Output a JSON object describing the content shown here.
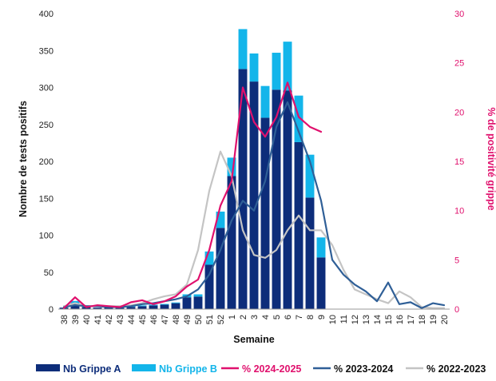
{
  "chart_data": {
    "type": "bar",
    "categories": [
      "38",
      "39",
      "40",
      "41",
      "42",
      "43",
      "44",
      "45",
      "46",
      "47",
      "48",
      "49",
      "50",
      "51",
      "52",
      "1",
      "2",
      "3",
      "4",
      "5",
      "6",
      "7",
      "8",
      "9",
      "10",
      "11",
      "12",
      "13",
      "14",
      "15",
      "16",
      "17",
      "18",
      "19",
      "20"
    ],
    "xlabel": "Semaine",
    "ylabel": "Nombre de tests positifs",
    "y2label": "% de positivité grippe",
    "ylim": [
      0,
      400
    ],
    "y2lim": [
      0,
      30
    ],
    "yticks": [
      0,
      50,
      100,
      150,
      200,
      250,
      300,
      350,
      400
    ],
    "y2ticks": [
      0,
      5,
      10,
      15,
      20,
      25,
      30
    ],
    "stacked": true,
    "legend_position": "bottom",
    "bar_series": [
      {
        "name": "Nb Grippe A",
        "color": "#0d2d7a",
        "values": [
          2,
          8,
          3,
          2,
          3,
          2,
          3,
          4,
          5,
          6,
          8,
          16,
          17,
          60,
          110,
          180,
          325,
          308,
          259,
          297,
          296,
          226,
          151,
          70,
          null,
          null,
          null,
          null,
          null,
          null,
          null,
          null,
          null,
          null,
          null
        ]
      },
      {
        "name": "Nb Grippe B",
        "color": "#13b5ea",
        "values": [
          0,
          3,
          0,
          0,
          0,
          0,
          1,
          1,
          1,
          1,
          1,
          4,
          3,
          18,
          22,
          25,
          54,
          38,
          43,
          50,
          66,
          63,
          58,
          27,
          null,
          null,
          null,
          null,
          null,
          null,
          null,
          null,
          null,
          null,
          null
        ]
      }
    ],
    "line_series": [
      {
        "name": "% 2024-2025",
        "color": "#e0106d",
        "axis": "right",
        "values": [
          0.1,
          1.2,
          0.2,
          0.4,
          0.3,
          0.2,
          0.7,
          0.9,
          0.5,
          0.8,
          1.3,
          2.3,
          3.0,
          6.0,
          10.5,
          13.0,
          22.5,
          19.0,
          17.5,
          19.5,
          23.0,
          19.5,
          18.5,
          18.0,
          null,
          null,
          null,
          null,
          null,
          null,
          null,
          null,
          null,
          null,
          null
        ]
      },
      {
        "name": "% 2023-2024",
        "color": "#2f5f97",
        "axis": "right",
        "values": [
          0.2,
          0.4,
          0.3,
          0.3,
          0.2,
          0.2,
          0.3,
          0.5,
          0.6,
          0.8,
          1.0,
          1.3,
          2.0,
          3.5,
          6.0,
          9.0,
          11.0,
          10.0,
          13.0,
          18.5,
          21.0,
          18.0,
          15.0,
          11.0,
          5.0,
          3.5,
          2.5,
          1.8,
          0.8,
          2.7,
          0.5,
          0.7,
          0.1,
          0.6,
          0.4
        ]
      },
      {
        "name": "% 2022-2023",
        "color": "#c4c4c4",
        "axis": "right",
        "values": [
          0.3,
          0.6,
          0.3,
          0.3,
          0.3,
          0.3,
          0.4,
          0.6,
          1.0,
          1.3,
          1.5,
          2.5,
          6.0,
          12.0,
          16.0,
          13.5,
          8.0,
          5.5,
          5.2,
          6.0,
          8.0,
          9.5,
          8.0,
          8.0,
          6.5,
          4.0,
          2.0,
          1.5,
          1.0,
          0.6,
          1.8,
          1.2,
          0.2,
          0.1,
          0.1
        ]
      }
    ]
  }
}
